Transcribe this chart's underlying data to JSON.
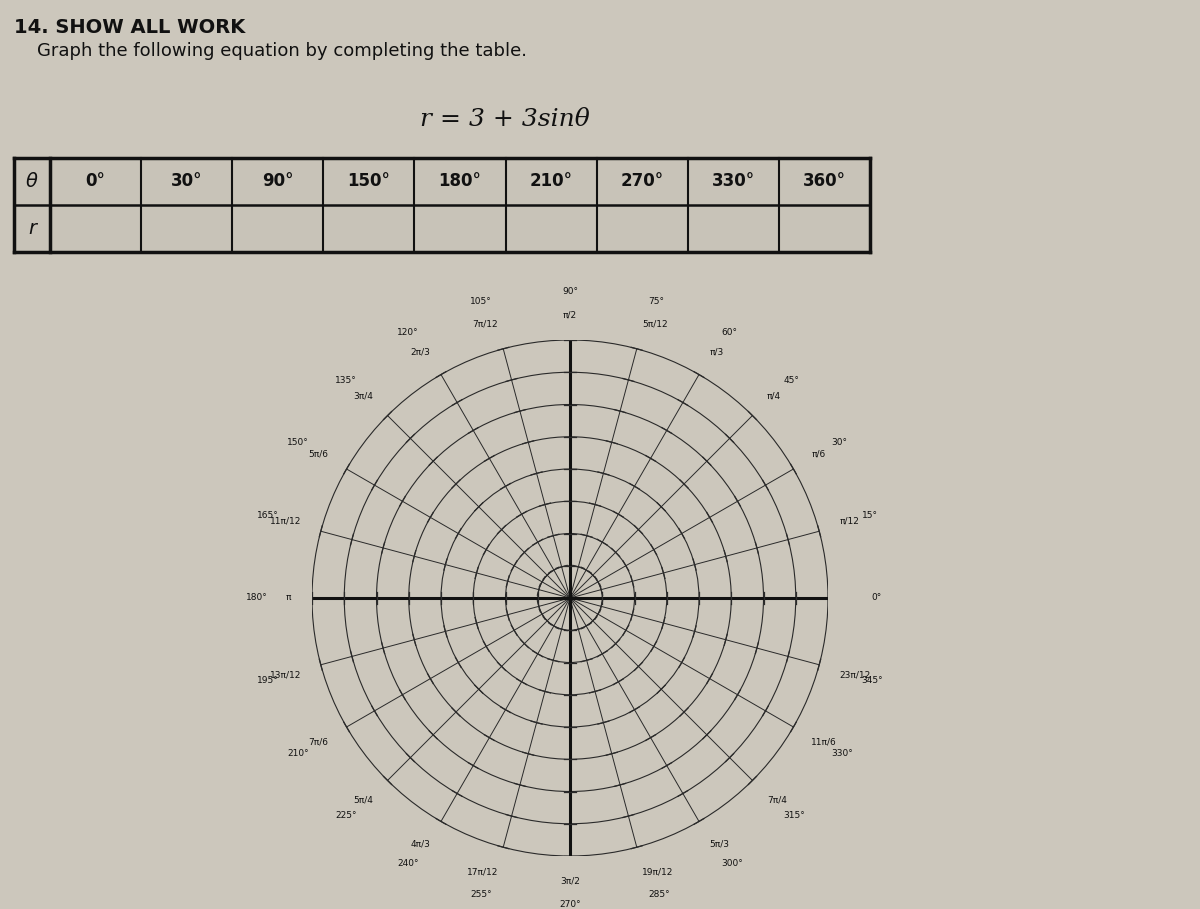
{
  "title_line1": "14. SHOW ALL WORK",
  "title_line2": "    Graph the following equation by completing the table.",
  "equation": "r = 3 + 3sinθ",
  "table_theta_label": "θ",
  "table_r_label": "r",
  "table_columns": [
    "0°",
    "30°",
    "90°",
    "150°",
    "180°",
    "210°",
    "270°",
    "330°",
    "360°"
  ],
  "bg_color": "#ccc7bc",
  "table_bg": "#c8c3b8",
  "line_color": "#1a1a1a",
  "num_circles": 8,
  "angle_labels": [
    {
      "deg": 0,
      "deg_label": "0°",
      "rad_label": ""
    },
    {
      "deg": 15,
      "deg_label": "15°",
      "rad_label": "π/12"
    },
    {
      "deg": 30,
      "deg_label": "30°",
      "rad_label": "π/6"
    },
    {
      "deg": 45,
      "deg_label": "45°",
      "rad_label": "π/4"
    },
    {
      "deg": 60,
      "deg_label": "60°",
      "rad_label": "π/3"
    },
    {
      "deg": 75,
      "deg_label": "75°",
      "rad_label": "5π/12"
    },
    {
      "deg": 90,
      "deg_label": "90°",
      "rad_label": "π/2"
    },
    {
      "deg": 105,
      "deg_label": "105°",
      "rad_label": "7π/12"
    },
    {
      "deg": 120,
      "deg_label": "120°",
      "rad_label": "2π/3"
    },
    {
      "deg": 135,
      "deg_label": "135°",
      "rad_label": "3π/4"
    },
    {
      "deg": 150,
      "deg_label": "150°",
      "rad_label": "5π/6"
    },
    {
      "deg": 165,
      "deg_label": "165°",
      "rad_label": "11π/12"
    },
    {
      "deg": 180,
      "deg_label": "180°",
      "rad_label": "π"
    },
    {
      "deg": 195,
      "deg_label": "195°",
      "rad_label": "13π/12"
    },
    {
      "deg": 210,
      "deg_label": "210°",
      "rad_label": "7π/6"
    },
    {
      "deg": 225,
      "deg_label": "225°",
      "rad_label": "5π/4"
    },
    {
      "deg": 240,
      "deg_label": "240°",
      "rad_label": "4π/3"
    },
    {
      "deg": 255,
      "deg_label": "255°",
      "rad_label": "17π/12"
    },
    {
      "deg": 270,
      "deg_label": "270°",
      "rad_label": "3π/2"
    },
    {
      "deg": 285,
      "deg_label": "285°",
      "rad_label": "19π/12"
    },
    {
      "deg": 300,
      "deg_label": "300°",
      "rad_label": "5π/3"
    },
    {
      "deg": 315,
      "deg_label": "315°",
      "rad_label": "7π/4"
    },
    {
      "deg": 330,
      "deg_label": "330°",
      "rad_label": "11π/6"
    },
    {
      "deg": 345,
      "deg_label": "345°",
      "rad_label": "23π/12"
    }
  ]
}
